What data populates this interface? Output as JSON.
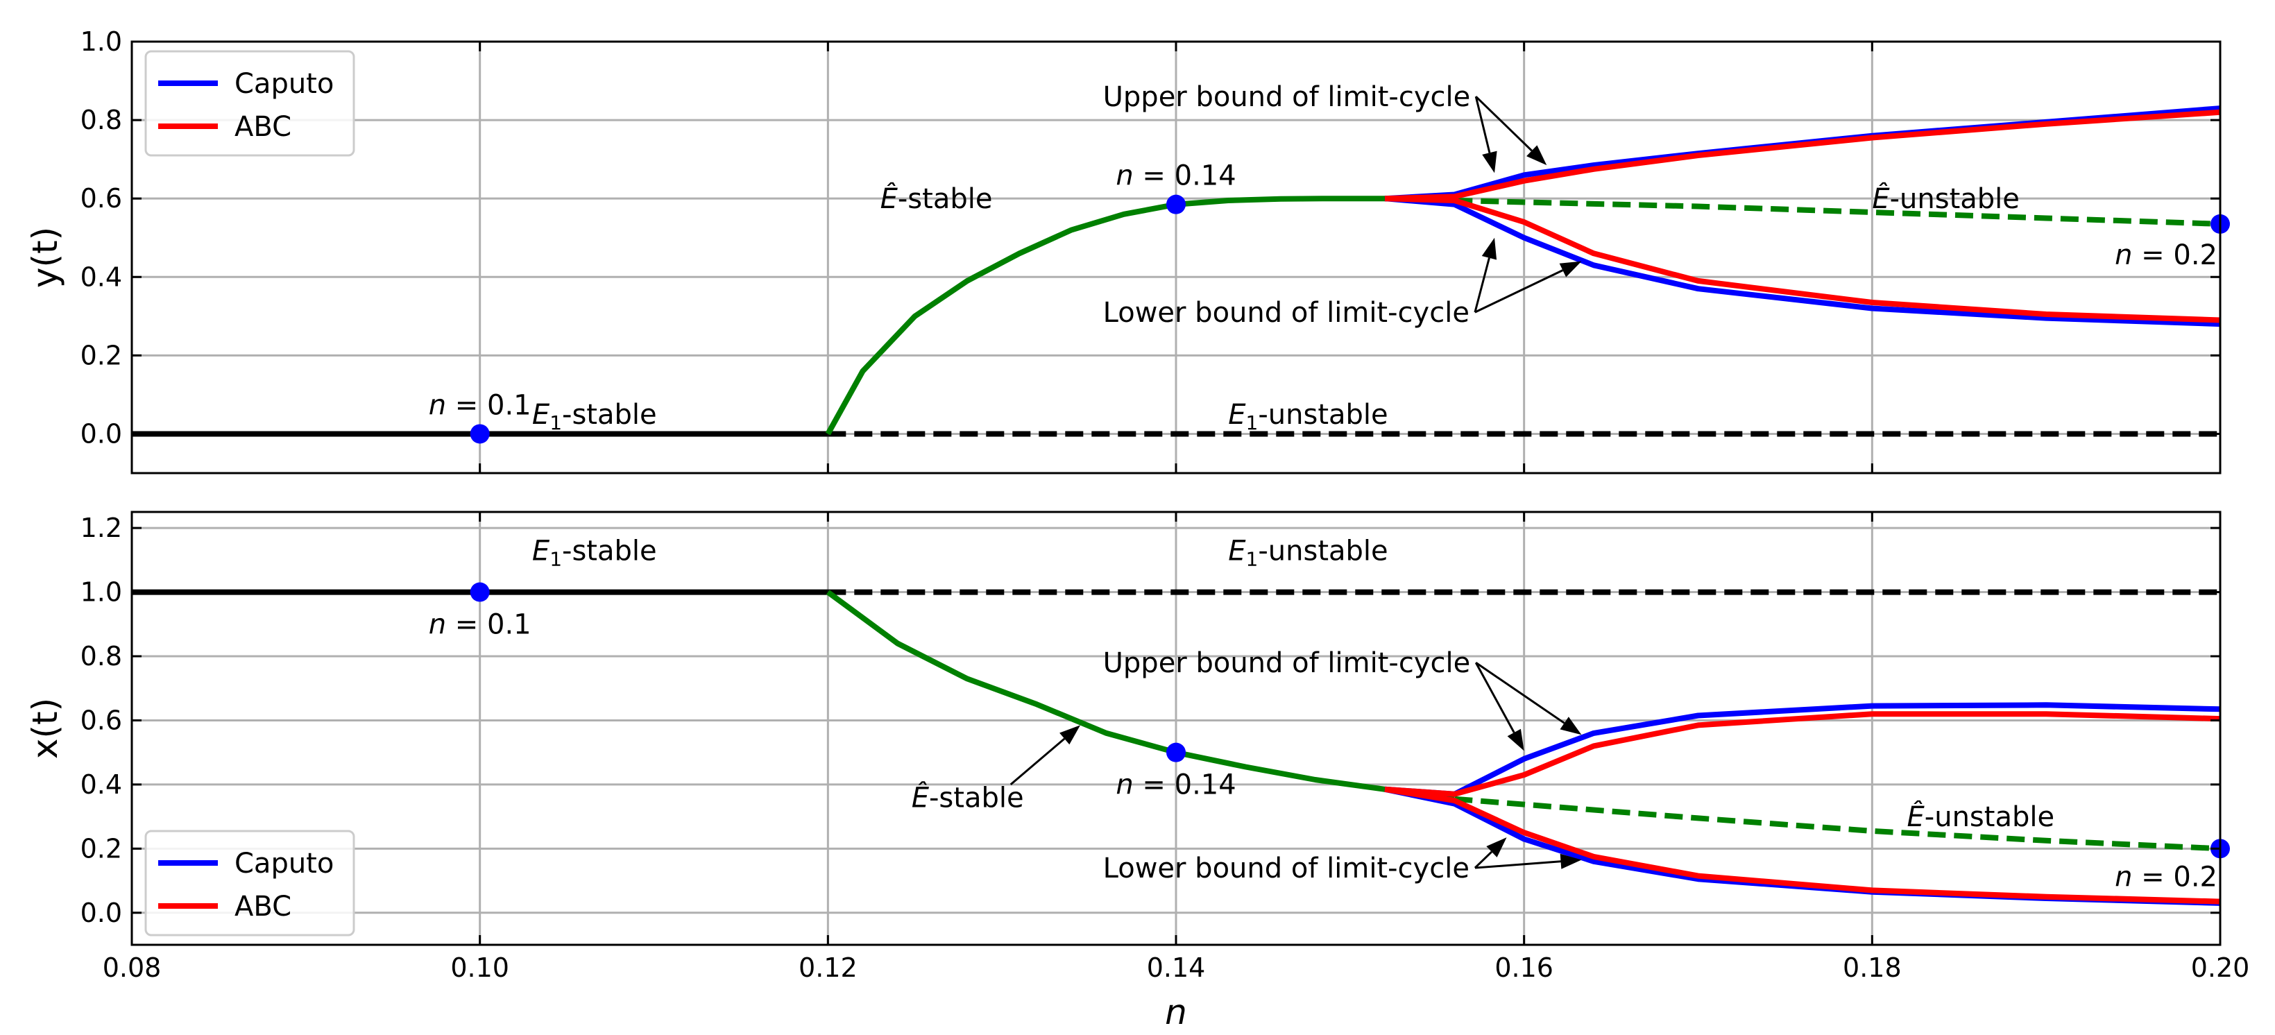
{
  "chart_data": [
    {
      "type": "line",
      "ylabel": "y(t)",
      "xlim": [
        0.08,
        0.2
      ],
      "ylim": [
        -0.1,
        1.0
      ],
      "y_ticks": [
        "0.0",
        "0.2",
        "0.4",
        "0.6",
        "0.8",
        "1.0"
      ],
      "y_tick_values": [
        0.0,
        0.2,
        0.4,
        0.6,
        0.8,
        1.0
      ],
      "grid": true,
      "legend_placement": "top-left",
      "legend": [
        {
          "label": "Caputo",
          "color": "#0000ff"
        },
        {
          "label": "ABC",
          "color": "#ff0000"
        }
      ],
      "series": [
        {
          "style": "solid",
          "color": "#000000",
          "x": [
            0.08,
            0.12
          ],
          "y": [
            0.0,
            0.0
          ]
        },
        {
          "style": "dashed",
          "color": "#000000",
          "x": [
            0.12,
            0.2
          ],
          "y": [
            0.0,
            0.0
          ]
        },
        {
          "style": "solid",
          "color": "#008000",
          "x": [
            0.12,
            0.122,
            0.125,
            0.128,
            0.131,
            0.134,
            0.137,
            0.14,
            0.143,
            0.146,
            0.149,
            0.152,
            0.156
          ],
          "y": [
            0.0,
            0.16,
            0.3,
            0.39,
            0.46,
            0.52,
            0.56,
            0.585,
            0.595,
            0.599,
            0.6,
            0.6,
            0.6
          ]
        },
        {
          "style": "dashed",
          "color": "#008000",
          "x": [
            0.156,
            0.17,
            0.18,
            0.19,
            0.2
          ],
          "y": [
            0.595,
            0.58,
            0.565,
            0.55,
            0.535
          ]
        },
        {
          "name": "Caputo",
          "color": "#0000ff",
          "x": [
            0.152,
            0.156,
            0.16,
            0.164,
            0.17,
            0.18,
            0.19,
            0.2
          ],
          "y": [
            0.6,
            0.61,
            0.66,
            0.685,
            0.715,
            0.76,
            0.795,
            0.83
          ]
        },
        {
          "name": "ABC",
          "color": "#ff0000",
          "x": [
            0.152,
            0.156,
            0.16,
            0.164,
            0.17,
            0.18,
            0.19,
            0.2
          ],
          "y": [
            0.6,
            0.605,
            0.645,
            0.675,
            0.71,
            0.755,
            0.79,
            0.82
          ]
        },
        {
          "name": "Caputo",
          "color": "#0000ff",
          "x": [
            0.152,
            0.156,
            0.16,
            0.164,
            0.17,
            0.18,
            0.19,
            0.2
          ],
          "y": [
            0.6,
            0.585,
            0.5,
            0.43,
            0.37,
            0.32,
            0.295,
            0.28
          ]
        },
        {
          "name": "ABC",
          "color": "#ff0000",
          "x": [
            0.152,
            0.156,
            0.16,
            0.164,
            0.17,
            0.18,
            0.19,
            0.2
          ],
          "y": [
            0.6,
            0.595,
            0.54,
            0.46,
            0.39,
            0.335,
            0.305,
            0.29
          ]
        }
      ],
      "markers": [
        {
          "x": 0.1,
          "y": 0.0,
          "label_prefix": "n",
          "label_value": " = 0.1"
        },
        {
          "x": 0.14,
          "y": 0.585,
          "label_prefix": "n",
          "label_value": " = 0.14"
        },
        {
          "x": 0.2,
          "y": 0.535,
          "label_prefix": "n",
          "label_value": " = 0.2"
        }
      ],
      "region_labels": [
        {
          "base": "E",
          "sub": "1",
          "suffix": "-stable",
          "x": 0.103,
          "y": 0.05
        },
        {
          "base": "E",
          "sub": "1",
          "suffix": "-unstable",
          "x": 0.143,
          "y": 0.05
        },
        {
          "base": "Ê",
          "sub": "",
          "suffix": "-stable",
          "x": 0.123,
          "y": 0.6
        },
        {
          "base": "Ê",
          "sub": "",
          "suffix": "-unstable",
          "x": 0.18,
          "y": 0.6
        }
      ],
      "annotations": [
        {
          "text": "Upper bound of limit-cycle",
          "x": 0.1358,
          "y": 0.86,
          "targets": [
            [
              0.1583,
              0.665
            ],
            [
              0.1613,
              0.685
            ]
          ]
        },
        {
          "text": "Lower bound of limit-cycle",
          "x": 0.1358,
          "y": 0.31,
          "targets": [
            [
              0.1583,
              0.5
            ],
            [
              0.1633,
              0.44
            ]
          ]
        }
      ]
    },
    {
      "type": "line",
      "xlabel": "n",
      "ylabel": "x(t)",
      "xlim": [
        0.08,
        0.2
      ],
      "ylim": [
        -0.1,
        1.25
      ],
      "x_ticks": [
        "0.08",
        "0.10",
        "0.12",
        "0.14",
        "0.16",
        "0.18",
        "0.20"
      ],
      "x_tick_values": [
        0.08,
        0.1,
        0.12,
        0.14,
        0.16,
        0.18,
        0.2
      ],
      "y_ticks": [
        "0.0",
        "0.2",
        "0.4",
        "0.6",
        "0.8",
        "1.0",
        "1.2"
      ],
      "y_tick_values": [
        0.0,
        0.2,
        0.4,
        0.6,
        0.8,
        1.0,
        1.2
      ],
      "grid": true,
      "legend_placement": "bottom-left",
      "legend": [
        {
          "label": "Caputo",
          "color": "#0000ff"
        },
        {
          "label": "ABC",
          "color": "#ff0000"
        }
      ],
      "series": [
        {
          "style": "solid",
          "color": "#000000",
          "x": [
            0.08,
            0.12
          ],
          "y": [
            1.0,
            1.0
          ]
        },
        {
          "style": "dashed",
          "color": "#000000",
          "x": [
            0.12,
            0.2
          ],
          "y": [
            1.0,
            1.0
          ]
        },
        {
          "style": "solid",
          "color": "#008000",
          "x": [
            0.12,
            0.124,
            0.128,
            0.132,
            0.136,
            0.14,
            0.144,
            0.148,
            0.152,
            0.156
          ],
          "y": [
            1.0,
            0.84,
            0.73,
            0.65,
            0.56,
            0.5,
            0.455,
            0.415,
            0.385,
            0.365
          ]
        },
        {
          "style": "dashed",
          "color": "#008000",
          "x": [
            0.156,
            0.17,
            0.18,
            0.19,
            0.2
          ],
          "y": [
            0.355,
            0.295,
            0.255,
            0.225,
            0.2
          ]
        },
        {
          "name": "Caputo",
          "color": "#0000ff",
          "x": [
            0.152,
            0.156,
            0.16,
            0.164,
            0.17,
            0.18,
            0.19,
            0.2
          ],
          "y": [
            0.385,
            0.37,
            0.48,
            0.56,
            0.615,
            0.645,
            0.648,
            0.635
          ]
        },
        {
          "name": "ABC",
          "color": "#ff0000",
          "x": [
            0.152,
            0.156,
            0.16,
            0.164,
            0.17,
            0.18,
            0.19,
            0.2
          ],
          "y": [
            0.385,
            0.37,
            0.43,
            0.52,
            0.585,
            0.62,
            0.62,
            0.605
          ]
        },
        {
          "name": "Caputo",
          "color": "#0000ff",
          "x": [
            0.152,
            0.156,
            0.16,
            0.164,
            0.17,
            0.18,
            0.19,
            0.2
          ],
          "y": [
            0.385,
            0.34,
            0.23,
            0.16,
            0.105,
            0.065,
            0.045,
            0.03
          ]
        },
        {
          "name": "ABC",
          "color": "#ff0000",
          "x": [
            0.152,
            0.156,
            0.16,
            0.164,
            0.17,
            0.18,
            0.19,
            0.2
          ],
          "y": [
            0.385,
            0.35,
            0.25,
            0.175,
            0.115,
            0.07,
            0.05,
            0.035
          ]
        }
      ],
      "markers": [
        {
          "x": 0.1,
          "y": 1.0,
          "label_prefix": "n",
          "label_value": " = 0.1"
        },
        {
          "x": 0.14,
          "y": 0.5,
          "label_prefix": "n",
          "label_value": " = 0.14"
        },
        {
          "x": 0.2,
          "y": 0.2,
          "label_prefix": "n",
          "label_value": " = 0.2"
        }
      ],
      "region_labels": [
        {
          "base": "E",
          "sub": "1",
          "suffix": "-stable",
          "x": 0.103,
          "y": 1.13
        },
        {
          "base": "E",
          "sub": "1",
          "suffix": "-unstable",
          "x": 0.143,
          "y": 1.13
        },
        {
          "base": "Ê",
          "sub": "",
          "suffix": "-stable",
          "x": 0.1248,
          "y": 0.36
        },
        {
          "base": "Ê",
          "sub": "",
          "suffix": "-unstable",
          "x": 0.182,
          "y": 0.3
        }
      ],
      "annotations": [
        {
          "text": "Upper bound of limit-cycle",
          "x": 0.1358,
          "y": 0.78,
          "targets": [
            [
              0.16,
              0.505
            ],
            [
              0.1633,
              0.555
            ]
          ]
        },
        {
          "text": "Lower bound of limit-cycle",
          "x": 0.1358,
          "y": 0.14,
          "targets": [
            [
              0.159,
              0.235
            ],
            [
              0.1633,
              0.165
            ]
          ]
        },
        {
          "text": "",
          "x": 0.1305,
          "y": 0.4,
          "targets": [
            [
              0.1345,
              0.585
            ]
          ]
        }
      ]
    }
  ]
}
